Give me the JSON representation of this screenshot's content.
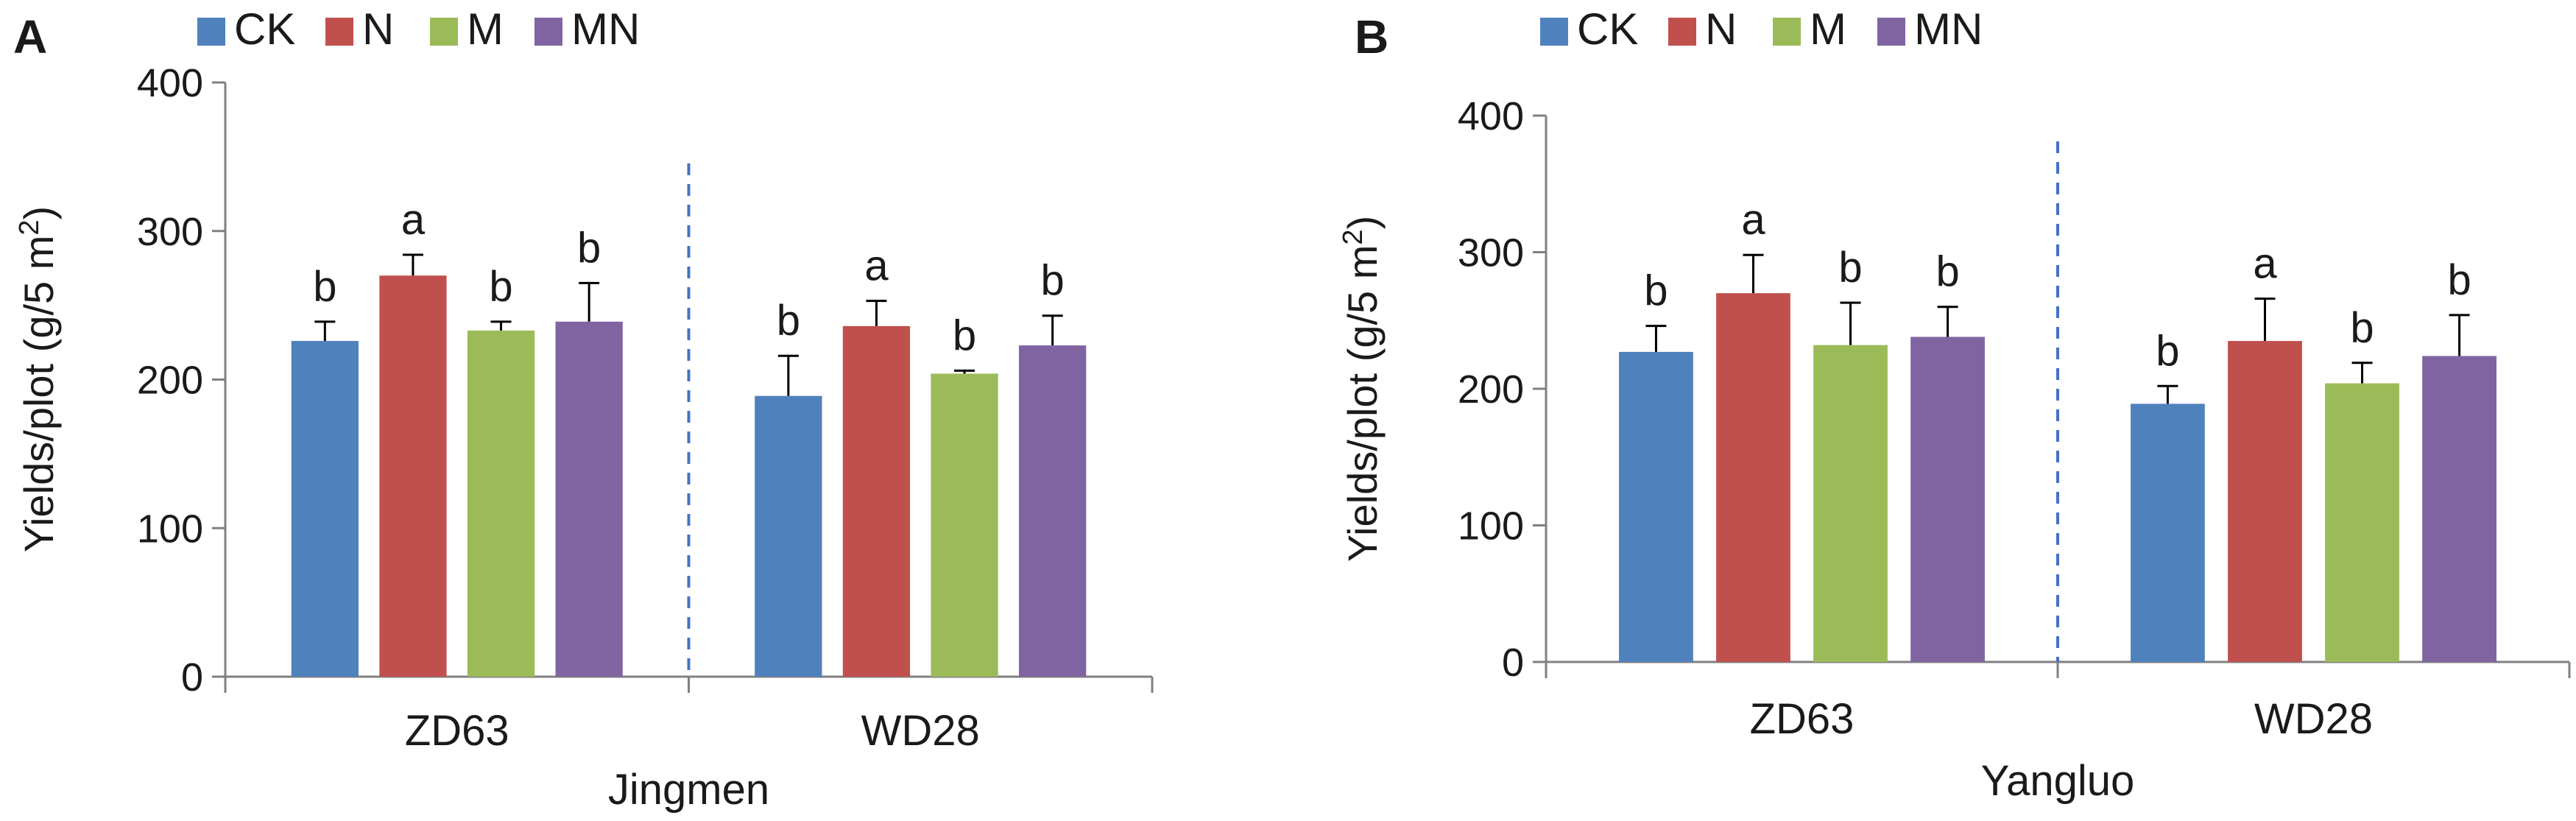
{
  "colors": {
    "CK": "#4f81bd",
    "N": "#c0504d",
    "M": "#9bbb59",
    "MN": "#8064a2",
    "divider": "#4472c4",
    "axis": "#808080",
    "text": "#1a1a1a"
  },
  "chart_data": [
    {
      "type": "bar",
      "panel": "A",
      "title": "",
      "xlabel": "Jingmen",
      "ylabel": "Yields/plot (g/5 m2)",
      "ylabel_parts": {
        "base": "Yields/plot (g/5 m",
        "sup": "2",
        "close": ")"
      },
      "ylim": [
        0,
        400
      ],
      "yticks": [
        0,
        100,
        200,
        300,
        400
      ],
      "ytick_labels": [
        "0",
        "100",
        "200",
        "300",
        "400"
      ],
      "grid": false,
      "legend_position": "top",
      "legend": [
        "CK",
        "N",
        "M",
        "MN"
      ],
      "categories": [
        "ZD63",
        "WD28"
      ],
      "series": [
        {
          "name": "CK",
          "values": [
            226,
            189
          ],
          "errors": [
            13,
            27
          ],
          "letters": [
            "b",
            "b"
          ]
        },
        {
          "name": "N",
          "values": [
            270,
            236
          ],
          "errors": [
            14,
            17
          ],
          "letters": [
            "a",
            "a"
          ]
        },
        {
          "name": "M",
          "values": [
            233,
            204
          ],
          "errors": [
            6,
            2
          ],
          "letters": [
            "b",
            "b"
          ]
        },
        {
          "name": "MN",
          "values": [
            239,
            223
          ],
          "errors": [
            26,
            20
          ],
          "letters": [
            "b",
            "b"
          ]
        }
      ]
    },
    {
      "type": "bar",
      "panel": "B",
      "title": "",
      "xlabel": "Yangluo",
      "ylabel": "Yields/plot (g/5 m2)",
      "ylabel_parts": {
        "base": "Yields/plot (g/5 m",
        "sup": "2",
        "close": ")"
      },
      "ylim": [
        0,
        400
      ],
      "yticks": [
        0,
        100,
        200,
        300,
        400
      ],
      "ytick_labels": [
        "0",
        "100",
        "200",
        "300",
        "400"
      ],
      "grid": false,
      "legend_position": "top",
      "legend": [
        "CK",
        "N",
        "M",
        "MN"
      ],
      "categories": [
        "ZD63",
        "WD28"
      ],
      "series": [
        {
          "name": "CK",
          "values": [
            227,
            189
          ],
          "errors": [
            19,
            13
          ],
          "letters": [
            "b",
            "b"
          ]
        },
        {
          "name": "N",
          "values": [
            270,
            235
          ],
          "errors": [
            28,
            31
          ],
          "letters": [
            "a",
            "a"
          ]
        },
        {
          "name": "M",
          "values": [
            232,
            204
          ],
          "errors": [
            31,
            15
          ],
          "letters": [
            "b",
            "b"
          ]
        },
        {
          "name": "MN",
          "values": [
            238,
            224
          ],
          "errors": [
            22,
            30
          ],
          "letters": [
            "b",
            "b"
          ]
        }
      ]
    }
  ]
}
